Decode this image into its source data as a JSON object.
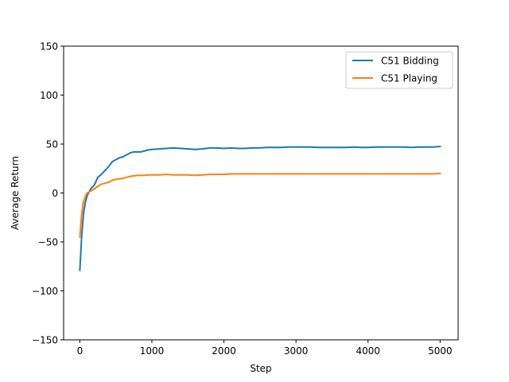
{
  "chart_data": {
    "type": "line",
    "title": "",
    "xlabel": "Step",
    "ylabel": "Average Return",
    "xlim": [
      -225,
      5250
    ],
    "ylim": [
      -150,
      150
    ],
    "xticks": [
      0,
      1000,
      2000,
      3000,
      4000,
      5000
    ],
    "yticks": [
      -150,
      -100,
      -50,
      0,
      50,
      100,
      150
    ],
    "xtick_labels": [
      "0",
      "1000",
      "2000",
      "3000",
      "4000",
      "5000"
    ],
    "ytick_labels": [
      "−150",
      "−100",
      "−50",
      "0",
      "50",
      "100",
      "150"
    ],
    "grid": false,
    "legend": "top-right",
    "series": [
      {
        "name": "C51 Bidding",
        "color": "#1f77b4",
        "x": [
          0,
          25,
          50,
          75,
          100,
          150,
          200,
          250,
          300,
          350,
          400,
          450,
          500,
          550,
          600,
          650,
          700,
          750,
          800,
          850,
          900,
          950,
          1000,
          1100,
          1200,
          1300,
          1400,
          1500,
          1600,
          1700,
          1800,
          1900,
          2000,
          2100,
          2200,
          2300,
          2400,
          2500,
          2600,
          2700,
          2800,
          2900,
          3000,
          3100,
          3200,
          3300,
          3400,
          3500,
          3600,
          3700,
          3800,
          3900,
          4000,
          4100,
          4200,
          4300,
          4400,
          4500,
          4600,
          4700,
          4800,
          4900,
          5000
        ],
        "values": [
          -79,
          -45,
          -22,
          -10,
          -3,
          4,
          8,
          16,
          19,
          23,
          27,
          32,
          34,
          36,
          37,
          39,
          41,
          42,
          42,
          42,
          43,
          44,
          44.5,
          45,
          45.5,
          46,
          45.5,
          45,
          44.5,
          45,
          46,
          46,
          45.5,
          46,
          45.5,
          45.5,
          46,
          46,
          46.5,
          46.5,
          46.5,
          47,
          47,
          47,
          47,
          46.5,
          46.5,
          46.5,
          46.5,
          46.5,
          47,
          46.5,
          46.5,
          47,
          47,
          47,
          47,
          47,
          46.5,
          47,
          47,
          47,
          47.5
        ]
      },
      {
        "name": "C51 Playing",
        "color": "#ff7f0e",
        "x": [
          0,
          25,
          50,
          75,
          100,
          150,
          200,
          250,
          300,
          350,
          400,
          450,
          500,
          550,
          600,
          650,
          700,
          750,
          800,
          850,
          900,
          950,
          1000,
          1100,
          1200,
          1300,
          1400,
          1500,
          1600,
          1700,
          1800,
          1900,
          2000,
          2100,
          2200,
          2300,
          2400,
          2500,
          2600,
          2700,
          2800,
          2900,
          3000,
          3100,
          3200,
          3300,
          3400,
          3500,
          3600,
          3700,
          3800,
          3900,
          4000,
          4100,
          4200,
          4300,
          4400,
          4500,
          4600,
          4700,
          4800,
          4900,
          5000
        ],
        "values": [
          -45,
          -22,
          -9,
          -4,
          0,
          2,
          4,
          7,
          9,
          10,
          11,
          13,
          14,
          14.5,
          15,
          16,
          17,
          17.5,
          18,
          18,
          18,
          18.5,
          18.5,
          18.5,
          19,
          18.5,
          18.5,
          18.5,
          18,
          18.5,
          19,
          19,
          19,
          19.5,
          19.5,
          19.5,
          19.5,
          19.5,
          19.5,
          19.5,
          19.5,
          19.5,
          19.5,
          19.5,
          19.5,
          19.5,
          19.5,
          19.5,
          19.5,
          19.5,
          19.5,
          19.5,
          19.5,
          19.5,
          19.5,
          19.5,
          19.5,
          19.5,
          19.5,
          19.5,
          19.5,
          19.5,
          20
        ]
      }
    ]
  }
}
